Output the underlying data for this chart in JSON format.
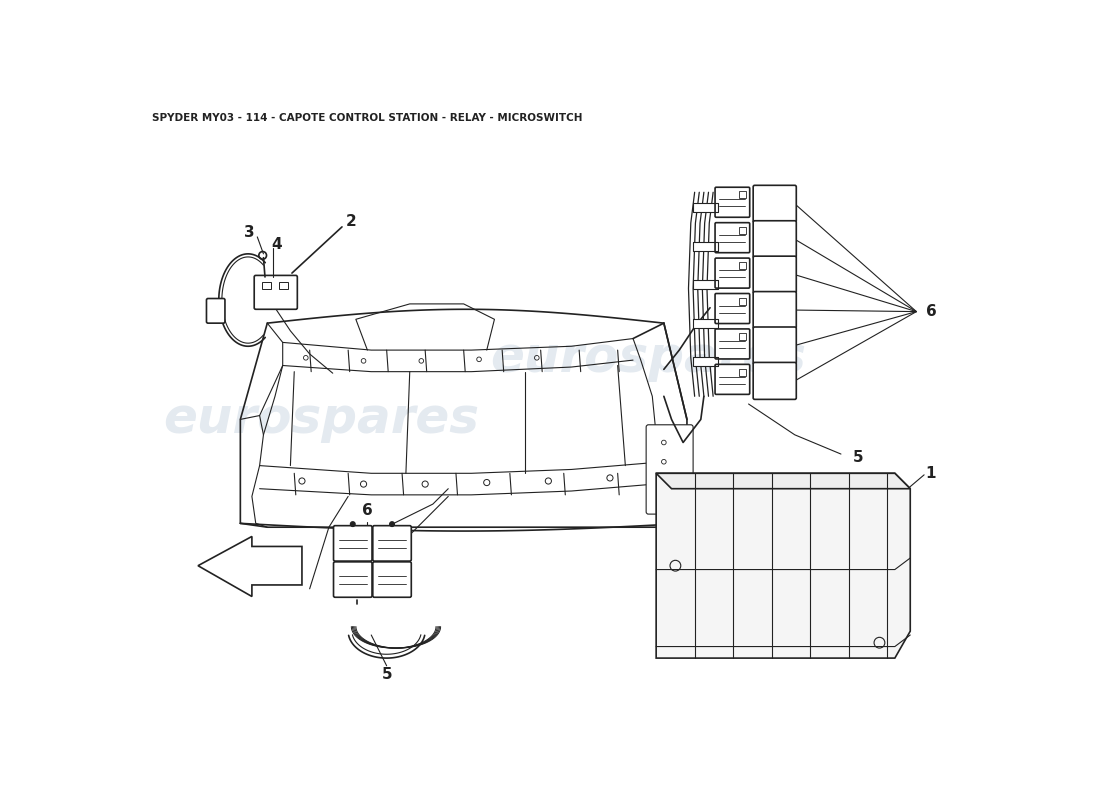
{
  "title": "SPYDER MY03 - 114 - CAPOTE CONTROL STATION - RELAY - MICROSWITCH",
  "title_fontsize": 7.5,
  "bg_color": "#ffffff",
  "line_color": "#222222",
  "watermark_color": "#b8c8d8",
  "watermark_alpha": 0.38,
  "fig_w": 11.0,
  "fig_h": 8.0,
  "dpi": 100
}
